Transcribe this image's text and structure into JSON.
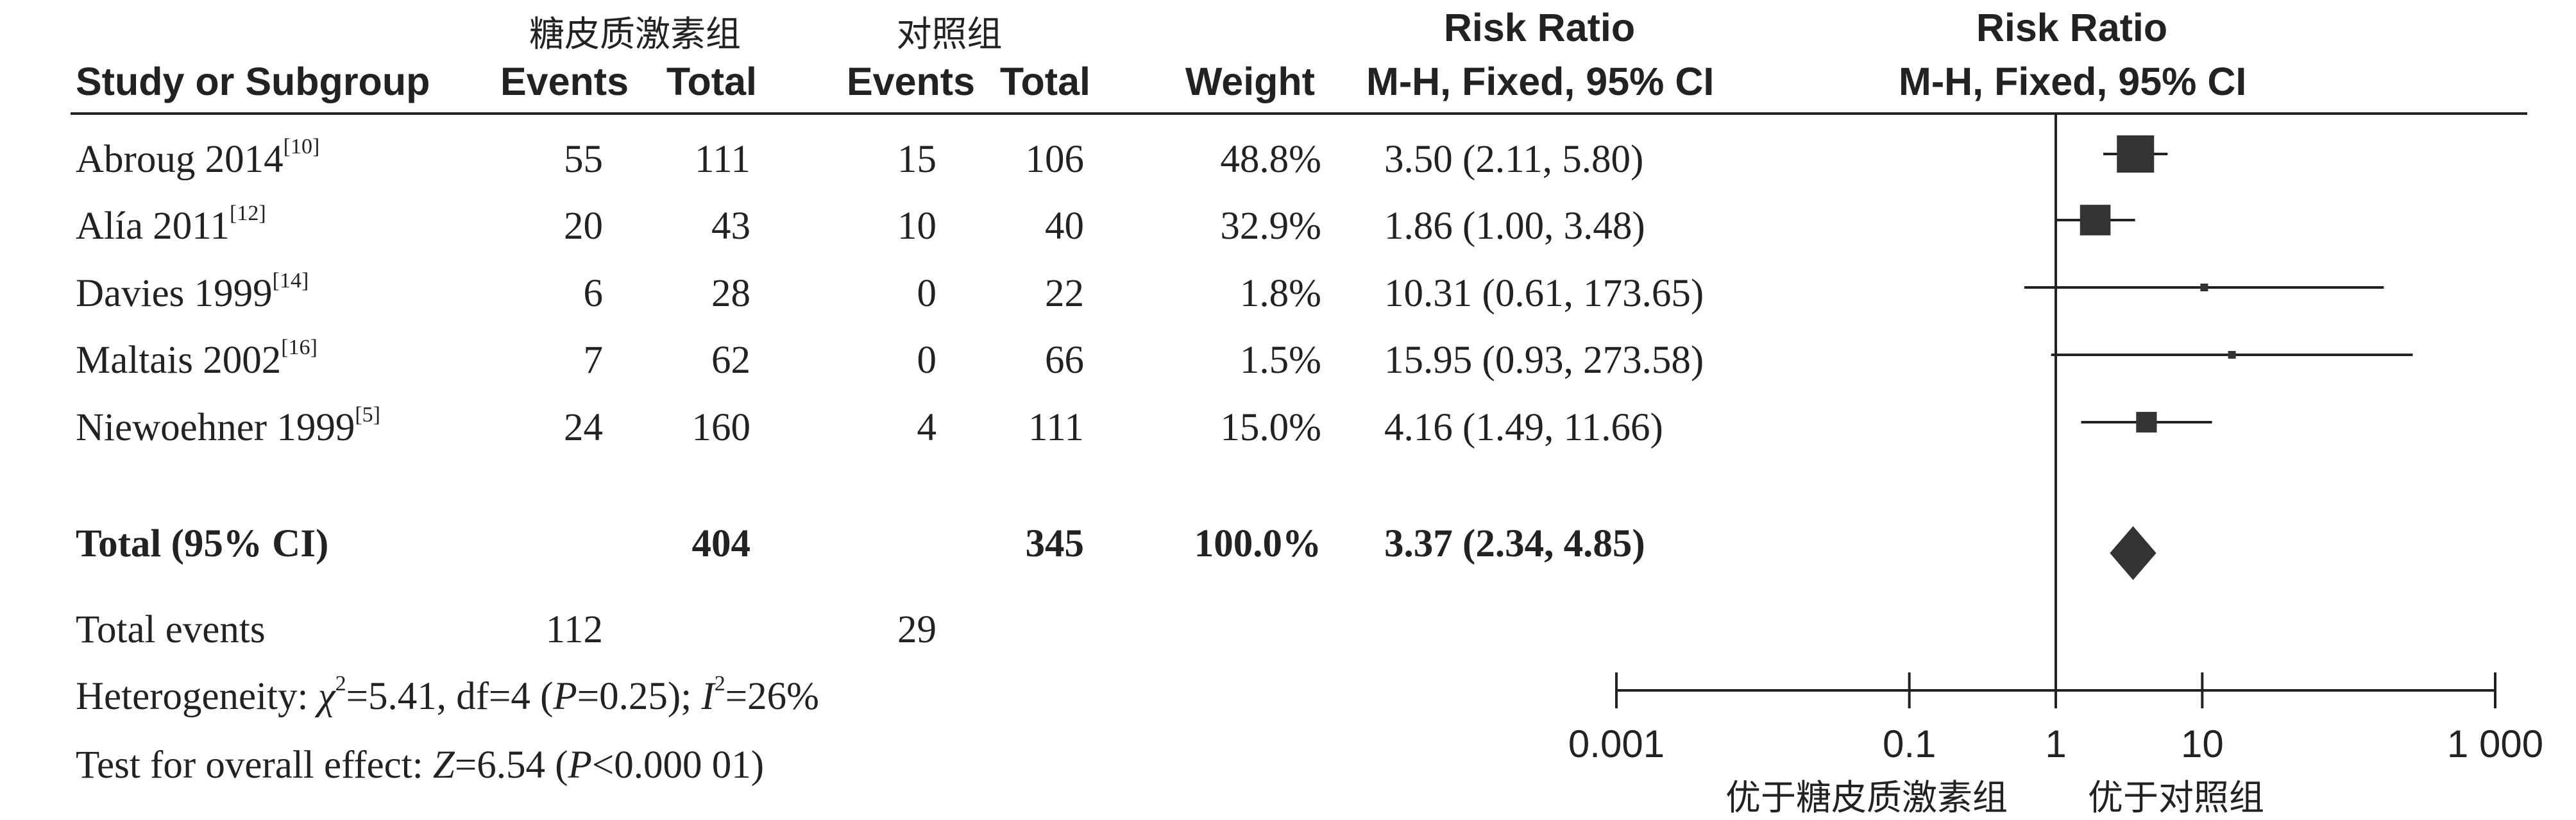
{
  "header": {
    "group_treatment": "糖皮质激素组",
    "group_control": "对照组",
    "risk_ratio": "Risk Ratio",
    "risk_ratio_plot": "Risk Ratio",
    "study_col": "Study or Subgroup",
    "events": "Events",
    "total": "Total",
    "events2": "Events",
    "total2": "Total",
    "weight": "Weight",
    "method": "M-H, Fixed, 95% CI",
    "method_plot": "M-H, Fixed, 95% CI"
  },
  "rows": [
    {
      "study": "Abroug 2014",
      "ref": "[10]",
      "e1": "55",
      "n1": "111",
      "e2": "15",
      "n2": "106",
      "weight": "48.8%",
      "ci": "3.50 (2.11, 5.80)"
    },
    {
      "study": "Alía 2011",
      "ref": "[12]",
      "e1": "20",
      "n1": "43",
      "e2": "10",
      "n2": "40",
      "weight": "32.9%",
      "ci": "1.86 (1.00, 3.48)"
    },
    {
      "study": "Davies 1999",
      "ref": "[14]",
      "e1": "6",
      "n1": "28",
      "e2": "0",
      "n2": "22",
      "weight": "1.8%",
      "ci": "10.31 (0.61, 173.65)"
    },
    {
      "study": "Maltais 2002",
      "ref": "[16]",
      "e1": "7",
      "n1": "62",
      "e2": "0",
      "n2": "66",
      "weight": "1.5%",
      "ci": "15.95 (0.93, 273.58)"
    },
    {
      "study": "Niewoehner 1999",
      "ref": "[5]",
      "e1": "24",
      "n1": "160",
      "e2": "4",
      "n2": "111",
      "weight": "15.0%",
      "ci": "4.16 (1.49, 11.66)"
    }
  ],
  "total": {
    "label": "Total (95% CI)",
    "n1": "404",
    "n2": "345",
    "weight": "100.0%",
    "ci": "3.37 (2.34, 4.85)"
  },
  "total_events": {
    "label": "Total events",
    "e1": "112",
    "e2": "29"
  },
  "heterogeneity": {
    "prefix": "Heterogeneity: ",
    "chi": "χ",
    "chi_sup": "2",
    "chi_val": "=5.41, df=4 (",
    "p": "P",
    "p_val": "=0.25); ",
    "i": "I",
    "i_sup": "2",
    "i_val": "=26%"
  },
  "overall": {
    "prefix": "Test for overall effect: ",
    "z": "Z",
    "z_val": "=6.54 (",
    "p": "P",
    "p_val": "<0.000 01)"
  },
  "favours": {
    "left": "优于糖皮质激素组",
    "right": "优于对照组"
  },
  "chart_data": {
    "type": "scatter",
    "subtype": "forest",
    "xscale": "log",
    "xlim": [
      0.001,
      1000
    ],
    "xticks": [
      0.001,
      0.1,
      1,
      10,
      1000
    ],
    "xtick_labels": [
      "0.001",
      "0.1",
      "1",
      "10",
      "1 000"
    ],
    "studies": [
      {
        "name": "Abroug 2014",
        "rr": 3.5,
        "lo": 2.11,
        "hi": 5.8,
        "weight": 48.8
      },
      {
        "name": "Alía 2011",
        "rr": 1.86,
        "lo": 1.0,
        "hi": 3.48,
        "weight": 32.9
      },
      {
        "name": "Davies 1999",
        "rr": 10.31,
        "lo": 0.61,
        "hi": 173.65,
        "weight": 1.8
      },
      {
        "name": "Maltais 2002",
        "rr": 15.95,
        "lo": 0.93,
        "hi": 273.58,
        "weight": 1.5
      },
      {
        "name": "Niewoehner 1999",
        "rr": 4.16,
        "lo": 1.49,
        "hi": 11.66,
        "weight": 15.0
      }
    ],
    "pooled": {
      "rr": 3.37,
      "lo": 2.34,
      "hi": 4.85
    },
    "colors": {
      "marker": "#333333",
      "line": "#222222"
    }
  }
}
